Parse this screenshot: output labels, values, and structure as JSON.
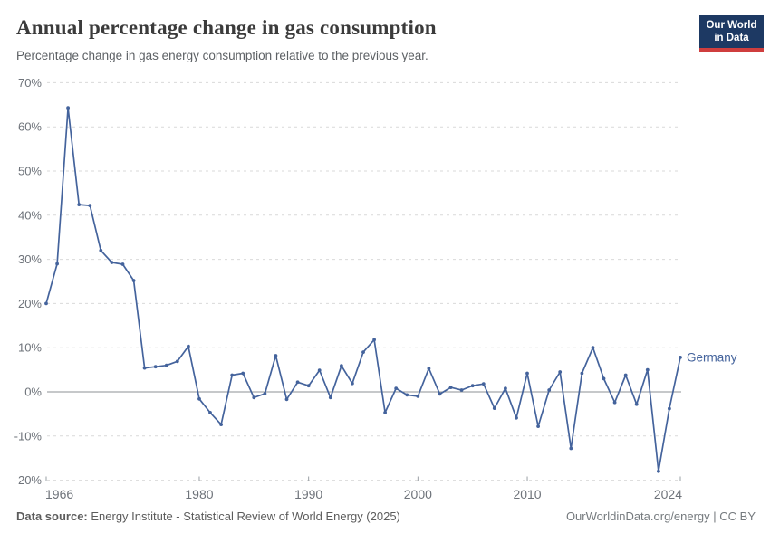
{
  "header": {
    "title": "Annual percentage change in gas consumption",
    "subtitle": "Percentage change in gas energy consumption relative to the previous year."
  },
  "logo": {
    "line1": "Our World",
    "line2": "in Data"
  },
  "chart_data": {
    "type": "line",
    "title": "Annual percentage change in gas consumption",
    "xlabel": "",
    "ylabel": "",
    "unit": "%",
    "ylim": [
      -20,
      70
    ],
    "yticks": [
      70,
      60,
      50,
      40,
      30,
      20,
      10,
      0,
      -10,
      -20
    ],
    "xticks": [
      1966,
      1980,
      1990,
      2000,
      2010,
      2024
    ],
    "grid": "horizontal-dashed, solid zero line",
    "legend_position": "end-of-line label",
    "x": [
      1966,
      1967,
      1968,
      1969,
      1970,
      1971,
      1972,
      1973,
      1974,
      1975,
      1976,
      1977,
      1978,
      1979,
      1980,
      1981,
      1982,
      1983,
      1984,
      1985,
      1986,
      1987,
      1988,
      1989,
      1990,
      1991,
      1992,
      1993,
      1994,
      1995,
      1996,
      1997,
      1998,
      1999,
      2000,
      2001,
      2002,
      2003,
      2004,
      2005,
      2006,
      2007,
      2008,
      2009,
      2010,
      2011,
      2012,
      2013,
      2014,
      2015,
      2016,
      2017,
      2018,
      2019,
      2020,
      2021,
      2022,
      2023,
      2024
    ],
    "series": [
      {
        "name": "Germany",
        "values": [
          20,
          29,
          64.3,
          42.4,
          42.2,
          32,
          29.3,
          28.9,
          25.2,
          5.4,
          5.7,
          6,
          6.9,
          10.3,
          -1.6,
          -4.7,
          -7.4,
          3.8,
          4.2,
          -1.3,
          -0.4,
          8.2,
          -1.7,
          2.2,
          1.4,
          4.9,
          -1.3,
          5.9,
          1.9,
          9,
          11.8,
          -4.7,
          0.8,
          -0.7,
          -1,
          5.3,
          -0.5,
          1,
          0.4,
          1.4,
          1.8,
          -3.7,
          0.8,
          -5.9,
          4.2,
          -7.8,
          0.4,
          4.5,
          -12.8,
          4.2,
          10,
          3,
          -2.4,
          3.8,
          -2.8,
          5,
          -18,
          -3.8,
          7.8
        ]
      }
    ],
    "line_color": "#44639c"
  },
  "colors": {
    "line": "#44639c",
    "grid": "#d9d9d9",
    "zero_line": "#8d9296",
    "axis_text": "#6e737a",
    "logo_bg": "#1d3963",
    "logo_red": "#cf3e3e"
  },
  "footer": {
    "source_label": "Data source:",
    "source_text": " Energy Institute - Statistical Review of World Energy (2025)",
    "credit": "OurWorldinData.org/energy | CC BY"
  }
}
